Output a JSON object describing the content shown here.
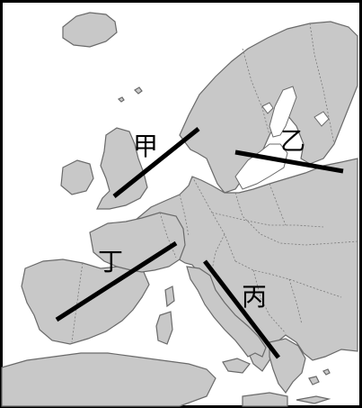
{
  "map": {
    "lines": [
      {
        "id": "jia",
        "label": "甲"
      },
      {
        "id": "yi",
        "label": "乙"
      },
      {
        "id": "bing",
        "label": "丙"
      },
      {
        "id": "ding",
        "label": "丁"
      }
    ]
  }
}
